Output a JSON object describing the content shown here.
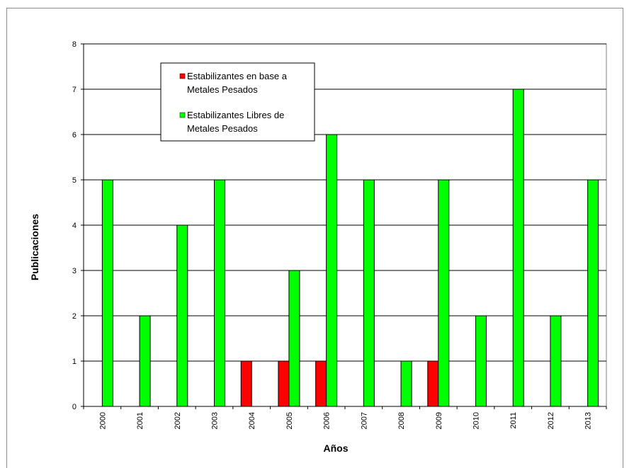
{
  "chart_data": {
    "type": "bar",
    "title": "",
    "xlabel": "Años",
    "ylabel": "Publicaciones",
    "categories": [
      "2000",
      "2001",
      "2002",
      "2003",
      "2004",
      "2005",
      "2006",
      "2007",
      "2008",
      "2009",
      "2010",
      "2011",
      "2012",
      "2013"
    ],
    "ylim": [
      0,
      8
    ],
    "yticks": [
      "0",
      "1",
      "2",
      "3",
      "4",
      "5",
      "6",
      "7",
      "8"
    ],
    "grid": true,
    "legend_position": "top-left inside plot",
    "series": [
      {
        "name": "Estabilizantes en base a Metales Pesados",
        "color": "#ff0000",
        "values": [
          0,
          0,
          0,
          0,
          1,
          1,
          1,
          0,
          0,
          1,
          0,
          0,
          0,
          0
        ]
      },
      {
        "name": "Estabilizantes Libres de Metales Pesados",
        "color": "#00ff00",
        "values": [
          5,
          2,
          4,
          5,
          0,
          3,
          6,
          5,
          1,
          5,
          2,
          7,
          2,
          5
        ]
      }
    ],
    "legend_lines": [
      [
        "Estabilizantes en base a",
        "Metales Pesados"
      ],
      [
        "Estabilizantes Libres de",
        "Metales Pesados"
      ]
    ]
  }
}
